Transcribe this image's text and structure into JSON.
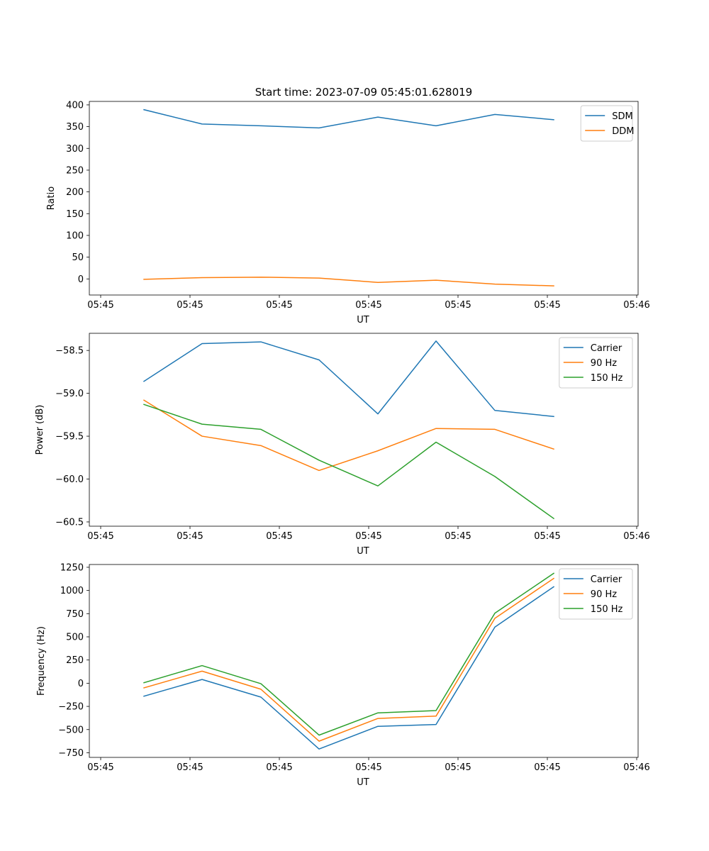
{
  "figure_title": "Start time: 2023-07-09 05:45:01.628019",
  "chart_data": [
    {
      "type": "line",
      "title": "",
      "xlabel": "UT",
      "ylabel": "Ratio",
      "x_tick_labels": [
        "05:45",
        "05:45",
        "05:45",
        "05:45",
        "05:45",
        "05:45",
        "05:46"
      ],
      "ylim": [
        -37,
        408
      ],
      "yticks": [
        0,
        50,
        100,
        150,
        200,
        250,
        300,
        350,
        400
      ],
      "legend": "top-right",
      "series": [
        {
          "name": "SDM",
          "color": "#1f77b4",
          "values": [
            389,
            356,
            352,
            347,
            372,
            352,
            378,
            366
          ]
        },
        {
          "name": "DDM",
          "color": "#ff7f0e",
          "values": [
            -1,
            3,
            4,
            2,
            -8,
            -3,
            -12,
            -16
          ]
        }
      ]
    },
    {
      "type": "line",
      "title": "",
      "xlabel": "UT",
      "ylabel": "Power (dB)",
      "x_tick_labels": [
        "05:45",
        "05:45",
        "05:45",
        "05:45",
        "05:45",
        "05:45",
        "05:46"
      ],
      "ylim": [
        -60.55,
        -58.3
      ],
      "yticks": [
        -60.5,
        -60.0,
        -59.5,
        -59.0,
        -58.5
      ],
      "ytick_labels": [
        "−60.5",
        "−60.0",
        "−59.5",
        "−59.0",
        "−58.5"
      ],
      "legend": "top-right",
      "series": [
        {
          "name": "Carrier",
          "color": "#1f77b4",
          "values": [
            -58.86,
            -58.42,
            -58.4,
            -58.61,
            -59.24,
            -58.39,
            -59.2,
            -59.27
          ]
        },
        {
          "name": "90 Hz",
          "color": "#ff7f0e",
          "values": [
            -59.08,
            -59.5,
            -59.61,
            -59.9,
            -59.67,
            -59.41,
            -59.42,
            -59.65
          ]
        },
        {
          "name": "150 Hz",
          "color": "#2ca02c",
          "values": [
            -59.13,
            -59.36,
            -59.42,
            -59.78,
            -60.08,
            -59.57,
            -59.97,
            -60.46
          ]
        }
      ]
    },
    {
      "type": "line",
      "title": "",
      "xlabel": "UT",
      "ylabel": "Frequency (Hz)",
      "x_tick_labels": [
        "05:45",
        "05:45",
        "05:45",
        "05:45",
        "05:45",
        "05:45",
        "05:46"
      ],
      "ylim": [
        -800,
        1280
      ],
      "yticks": [
        -750,
        -500,
        -250,
        0,
        250,
        500,
        750,
        1000,
        1250
      ],
      "ytick_labels": [
        "−750",
        "−500",
        "−250",
        "0",
        "250",
        "500",
        "750",
        "1000",
        "1250"
      ],
      "legend": "top-right",
      "series": [
        {
          "name": "Carrier",
          "color": "#1f77b4",
          "values": [
            -140,
            40,
            -150,
            -710,
            -465,
            -445,
            605,
            1040
          ]
        },
        {
          "name": "90 Hz",
          "color": "#ff7f0e",
          "values": [
            -50,
            130,
            -65,
            -625,
            -380,
            -355,
            700,
            1130
          ]
        },
        {
          "name": "150 Hz",
          "color": "#2ca02c",
          "values": [
            5,
            190,
            -5,
            -560,
            -320,
            -295,
            755,
            1185
          ]
        }
      ]
    }
  ]
}
